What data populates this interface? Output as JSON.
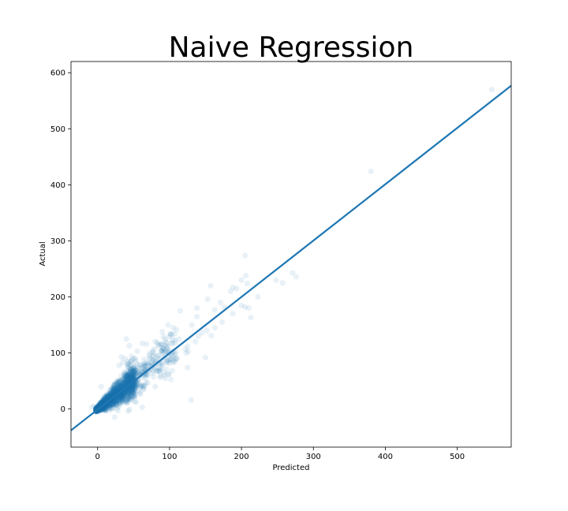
{
  "chart_data": {
    "type": "scatter",
    "title": "Naive Regression",
    "xlabel": "Predicted",
    "ylabel": "Actual",
    "xlim": [
      -37,
      575
    ],
    "ylim": [
      -68,
      620
    ],
    "xticks": [
      0,
      100,
      200,
      300,
      400,
      500
    ],
    "yticks": [
      0,
      100,
      200,
      300,
      400,
      500,
      600
    ],
    "grid": false,
    "legend": "none",
    "colors": {
      "points": "#1f77b4",
      "line": "#1f77b4",
      "band": "#1f77b4"
    },
    "regression": {
      "slope": 1.005,
      "intercept": -1.0
    },
    "series": [
      {
        "points": [
          [
            380,
            424
          ],
          [
            548,
            570
          ],
          [
            271,
            243
          ],
          [
            276,
            236
          ],
          [
            257,
            225
          ],
          [
            248,
            230
          ],
          [
            205,
            274
          ],
          [
            206,
            238
          ],
          [
            208,
            224
          ],
          [
            200,
            230
          ],
          [
            193,
            215
          ],
          [
            188,
            217
          ],
          [
            185,
            210
          ],
          [
            223,
            200
          ],
          [
            205,
            182
          ],
          [
            200,
            185
          ],
          [
            210,
            180
          ],
          [
            213,
            163
          ],
          [
            188,
            170
          ],
          [
            176,
            182
          ],
          [
            171,
            190
          ],
          [
            163,
            177
          ],
          [
            157,
            220
          ],
          [
            153,
            196
          ],
          [
            173,
            155
          ],
          [
            163,
            145
          ],
          [
            158,
            131
          ],
          [
            152,
            140
          ],
          [
            145,
            136
          ],
          [
            140,
            130
          ],
          [
            136,
            120
          ],
          [
            131,
            150
          ],
          [
            138,
            165
          ],
          [
            138,
            180
          ],
          [
            125,
            112
          ],
          [
            123,
            100
          ],
          [
            125,
            74
          ],
          [
            150,
            92
          ],
          [
            130,
            16
          ],
          [
            126,
            103
          ],
          [
            122,
            107
          ],
          [
            115,
            175
          ],
          [
            113,
            125
          ],
          [
            104,
            117
          ],
          [
            103,
            133
          ],
          [
            106,
            95
          ],
          [
            98,
            150
          ],
          [
            94,
            125
          ],
          [
            90,
            138
          ],
          [
            85,
            115
          ],
          [
            80,
            82
          ],
          [
            95,
            102
          ],
          [
            100,
            82
          ],
          [
            73,
            100
          ],
          [
            68,
            116
          ],
          [
            62,
            117
          ],
          [
            55,
            103
          ],
          [
            44,
            113
          ],
          [
            40,
            125
          ],
          [
            38,
            90
          ],
          [
            33,
            93
          ],
          [
            35,
            83
          ],
          [
            30,
            78
          ],
          [
            48,
            60
          ],
          [
            62,
            3
          ],
          [
            80,
            40
          ],
          [
            60,
            40
          ],
          [
            40,
            15
          ],
          [
            30,
            5
          ],
          [
            20,
            8
          ],
          [
            5,
            40
          ],
          [
            -5,
            5
          ],
          [
            -8,
            3
          ]
        ]
      }
    ]
  }
}
